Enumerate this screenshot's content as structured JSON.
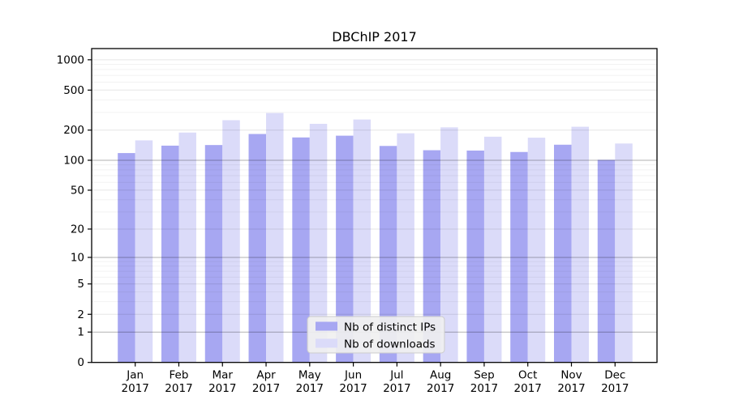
{
  "chart_data": {
    "type": "bar",
    "title": "DBChIP 2017",
    "year": "2017",
    "categories": [
      "Jan",
      "Feb",
      "Mar",
      "Apr",
      "May",
      "Jun",
      "Jul",
      "Aug",
      "Sep",
      "Oct",
      "Nov",
      "Dec"
    ],
    "series": [
      {
        "name": "Nb of distinct IPs",
        "color": "#a7a7f2",
        "values": [
          118,
          140,
          142,
          183,
          169,
          176,
          139,
          126,
          125,
          121,
          143,
          101
        ]
      },
      {
        "name": "Nb of downloads",
        "color": "#dbdbf9",
        "values": [
          158,
          189,
          251,
          296,
          231,
          255,
          186,
          213,
          172,
          168,
          216,
          147
        ]
      }
    ],
    "y_ticks": [
      1000,
      500,
      200,
      100,
      50,
      20,
      10,
      5,
      2,
      1,
      0
    ],
    "scale": "log1p",
    "ylim": [
      0,
      1000
    ],
    "grid": true,
    "legend_position": "bottom-center",
    "colors": {
      "spine": "#000000",
      "grid_major": "rgba(0,0,0,0.30)",
      "grid_labeled": "rgba(0,0,0,0.10)",
      "grid_minor": "rgba(0,0,0,0.05)",
      "legend_bg": "rgba(240,240,240,0.92)",
      "legend_border": "#cccccc"
    }
  }
}
